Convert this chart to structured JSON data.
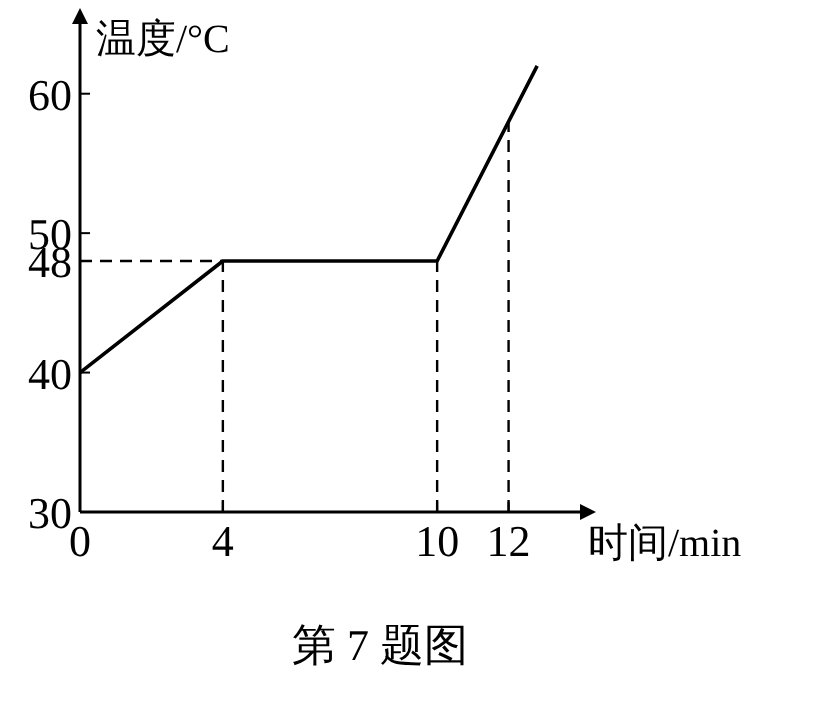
{
  "chart_data": {
    "type": "line",
    "xlabel": "时间/min",
    "ylabel": "温度/°C",
    "x": [
      0,
      4,
      10,
      12,
      12.8
    ],
    "series": [
      {
        "color": "#000000",
        "values": [
          40,
          48,
          48,
          58,
          62
        ]
      }
    ],
    "xlim": [
      0,
      14
    ],
    "ylim": [
      30,
      65
    ],
    "xticks": [
      0,
      4,
      10,
      12
    ],
    "yticks": [
      30,
      40,
      48,
      50,
      60
    ],
    "ref_lines": [
      {
        "axis": "y",
        "value": 48,
        "line_style": "dashed",
        "color": "#000000"
      },
      {
        "axis": "x",
        "value": 4,
        "line_style": "dashed",
        "color": "#000000"
      },
      {
        "axis": "x",
        "value": 10,
        "line_style": "dashed",
        "color": "#000000"
      },
      {
        "axis": "x",
        "value": 12,
        "line_style": "dashed",
        "color": "#000000"
      }
    ],
    "annotations": [
      "第 7 题图"
    ]
  }
}
